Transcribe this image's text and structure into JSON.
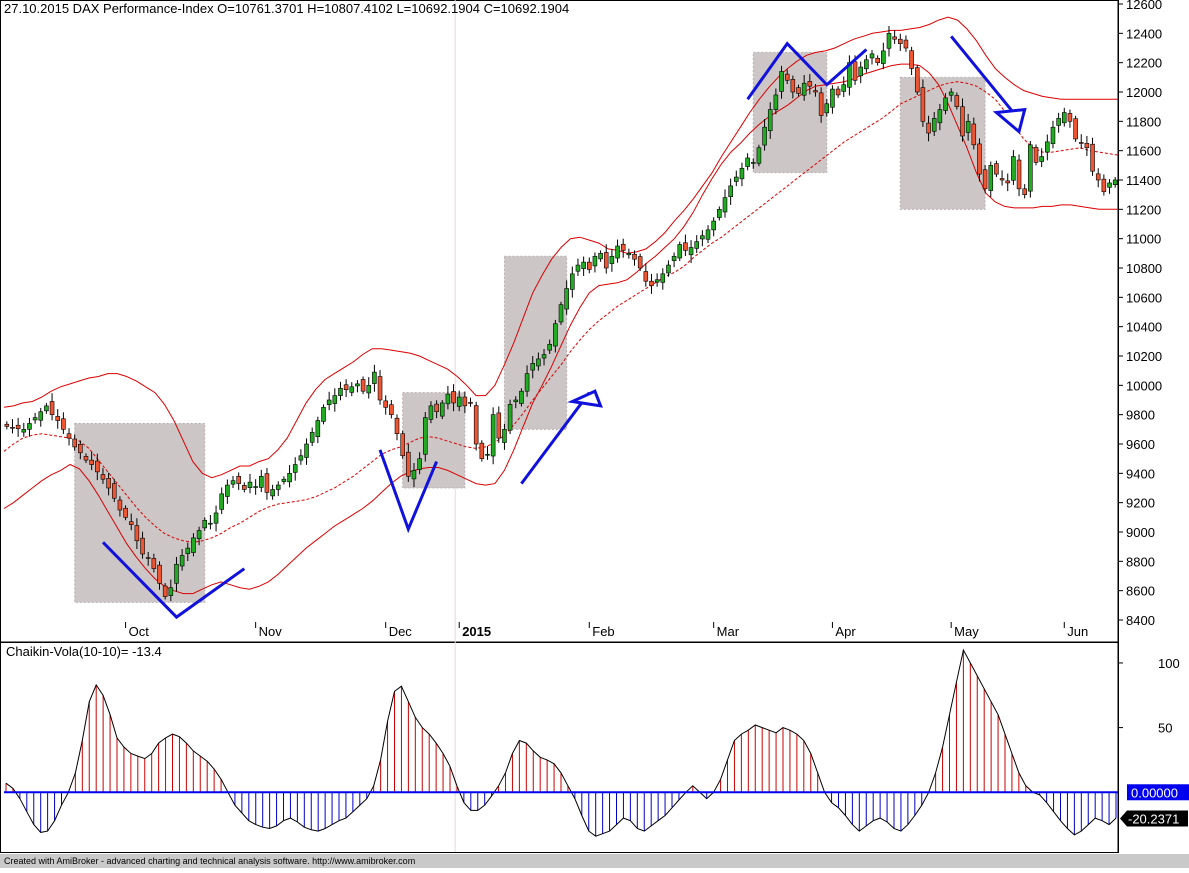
{
  "header": {
    "price_title": "27.10.2015 DAX Performance-Index  O=10761.3701  H=10807.4102  L=10692.1904  C=10692.1904",
    "indicator_title": "Chaikin-Vola(10-10)= -13.4"
  },
  "footer": {
    "text": "Created with AmiBroker - advanced charting and technical analysis software. http://www.amibroker.com"
  },
  "colors": {
    "up": "#22aa22",
    "down": "#ee5533",
    "band": "#dd0000",
    "annotation": "#1111dd",
    "box": "#cdc6c6",
    "positive": "#cc0000",
    "negative": "#0000cc"
  },
  "chart_data": [
    {
      "type": "candlestick",
      "y_axis_ticks": [
        "12600",
        "12400",
        "12200",
        "12000",
        "11800",
        "11600",
        "11400",
        "11200",
        "11000",
        "10800",
        "10600",
        "10400",
        "10200",
        "10000",
        "9800",
        "9600",
        "9400",
        "9200",
        "9000",
        "8800",
        "8600",
        "8400"
      ],
      "ylim": [
        8400,
        12600
      ],
      "x_axis_labels": [
        "Oct",
        "Nov",
        "Dec",
        "2015",
        "Feb",
        "Mar",
        "Apr",
        "May",
        "Jun"
      ],
      "close_values": [
        9720,
        9710,
        9705,
        9700,
        9740,
        9780,
        9820,
        9860,
        9800,
        9760,
        9700,
        9640,
        9580,
        9540,
        9490,
        9460,
        9410,
        9360,
        9300,
        9230,
        9150,
        9100,
        9050,
        8940,
        8850,
        8820,
        8750,
        8650,
        8560,
        8620,
        8780,
        8840,
        8890,
        8960,
        9010,
        9080,
        9060,
        9130,
        9260,
        9320,
        9350,
        9330,
        9290,
        9340,
        9310,
        9380,
        9270,
        9290,
        9320,
        9360,
        9400,
        9460,
        9520,
        9600,
        9680,
        9760,
        9850,
        9900,
        9930,
        9980,
        9970,
        9990,
        10010,
        9960,
        10000,
        10090,
        9900,
        9850,
        9800,
        9670,
        9520,
        9380,
        9420,
        9500,
        9780,
        9860,
        9820,
        9880,
        9940,
        9880,
        9920,
        9860,
        9880,
        9600,
        9500,
        9530,
        9800,
        9640,
        9700,
        9870,
        9900,
        9960,
        10080,
        10150,
        10180,
        10210,
        10280,
        10420,
        10550,
        10660,
        10760,
        10820,
        10840,
        10790,
        10880,
        10900,
        10800,
        10880,
        10950,
        10920,
        10900,
        10860,
        10800,
        10710,
        10680,
        10720,
        10760,
        10820,
        10880,
        10960,
        10920,
        10940,
        10980,
        11020,
        11060,
        11120,
        11200,
        11280,
        11360,
        11420,
        11480,
        11550,
        11520,
        11620,
        11760,
        11880,
        11980,
        12140,
        12080,
        12000,
        11990,
        12060,
        12040,
        12000,
        11840,
        11920,
        12020,
        11980,
        12050,
        12200,
        12080,
        12170,
        12220,
        12260,
        12200,
        12280,
        12400,
        12360,
        12330,
        12300,
        12160,
        12000,
        11800,
        11720,
        11820,
        11880,
        11960,
        12000,
        11900,
        11700,
        11800,
        11640,
        11440,
        11340,
        11500,
        11440,
        11400,
        11380,
        11560,
        11340,
        11300,
        11640,
        11520,
        11560,
        11660,
        11760,
        11820,
        11860,
        11800,
        11680,
        11650,
        11620,
        11460,
        11400,
        11320,
        11380,
        11400
      ],
      "bollinger_mid": [
        9550,
        9600,
        9640,
        9660,
        9670,
        9660,
        9650,
        9640,
        9620,
        9570,
        9490,
        9410,
        9330,
        9250,
        9170,
        9100,
        9040,
        8990,
        8960,
        8940,
        8930,
        8940,
        8960,
        8990,
        9030,
        9060,
        9100,
        9140,
        9170,
        9190,
        9200,
        9210,
        9220,
        9240,
        9270,
        9300,
        9340,
        9380,
        9430,
        9480,
        9530,
        9560,
        9580,
        9610,
        9640,
        9650,
        9640,
        9620,
        9600,
        9580,
        9570,
        9580,
        9610,
        9660,
        9730,
        9810,
        9900,
        9980,
        10060,
        10140,
        10230,
        10310,
        10380,
        10440,
        10490,
        10540,
        10580,
        10620,
        10660,
        10700,
        10740,
        10770,
        10810,
        10870,
        10920,
        10970,
        11010,
        11060,
        11110,
        11160,
        11210,
        11260,
        11310,
        11360,
        11410,
        11460,
        11510,
        11560,
        11610,
        11660,
        11700,
        11740,
        11780,
        11820,
        11870,
        11920,
        11950,
        11980,
        12010,
        12040,
        12060,
        12070,
        12060,
        12040,
        12000,
        11950,
        11870,
        11770,
        11680,
        11620,
        11590,
        11590,
        11600,
        11610,
        11620,
        11600,
        11590,
        11580,
        11570
      ],
      "bollinger_upper": [
        9850,
        9860,
        9880,
        9890,
        9920,
        9960,
        9990,
        10010,
        10030,
        10050,
        10060,
        10080,
        10080,
        10060,
        10030,
        9990,
        9950,
        9870,
        9760,
        9620,
        9480,
        9400,
        9370,
        9390,
        9420,
        9450,
        9450,
        9480,
        9500,
        9560,
        9640,
        9760,
        9880,
        9970,
        10040,
        10080,
        10120,
        10160,
        10210,
        10250,
        10250,
        10240,
        10230,
        10220,
        10200,
        10170,
        10140,
        10110,
        10060,
        10000,
        9930,
        9930,
        10000,
        10140,
        10290,
        10460,
        10630,
        10750,
        10860,
        10940,
        11000,
        11010,
        10990,
        10970,
        10930,
        10920,
        10900,
        10910,
        10930,
        10980,
        11040,
        11120,
        11190,
        11270,
        11360,
        11450,
        11560,
        11660,
        11760,
        11860,
        11950,
        12030,
        12100,
        12160,
        12210,
        12250,
        12270,
        12280,
        12300,
        12330,
        12360,
        12380,
        12400,
        12410,
        12420,
        12420,
        12430,
        12440,
        12460,
        12490,
        12510,
        12490,
        12430,
        12350,
        12250,
        12160,
        12100,
        12050,
        12010,
        11990,
        11970,
        11960,
        11950,
        11950,
        11950,
        11950,
        11950,
        11950,
        11950
      ],
      "bollinger_lower": [
        9160,
        9200,
        9250,
        9300,
        9350,
        9390,
        9420,
        9460,
        9430,
        9350,
        9250,
        9140,
        9030,
        8920,
        8830,
        8750,
        8680,
        8630,
        8600,
        8580,
        8580,
        8610,
        8640,
        8660,
        8640,
        8620,
        8610,
        8630,
        8660,
        8710,
        8770,
        8830,
        8890,
        8940,
        8990,
        9040,
        9080,
        9120,
        9160,
        9210,
        9270,
        9330,
        9380,
        9410,
        9430,
        9440,
        9440,
        9420,
        9390,
        9360,
        9330,
        9320,
        9330,
        9420,
        9560,
        9720,
        9880,
        10000,
        10130,
        10270,
        10410,
        10530,
        10630,
        10680,
        10690,
        10700,
        10720,
        10770,
        10830,
        10880,
        10940,
        11000,
        11080,
        11180,
        11300,
        11410,
        11510,
        11590,
        11650,
        11720,
        11780,
        11830,
        11870,
        11910,
        11960,
        12010,
        12040,
        12050,
        12060,
        12070,
        12090,
        12120,
        12140,
        12160,
        12180,
        12190,
        12190,
        12180,
        12130,
        12050,
        11920,
        11770,
        11620,
        11450,
        11310,
        11250,
        11220,
        11210,
        11210,
        11210,
        11220,
        11220,
        11230,
        11230,
        11220,
        11210,
        11200,
        11200,
        11200
      ]
    },
    {
      "type": "histogram",
      "title": "Chaikin-Vola(10-10)= -13.4",
      "y_axis_ticks": [
        "100",
        "50"
      ],
      "ylim": [
        -40,
        110
      ],
      "zero_label": "0.00000",
      "last_value_label": "-20.2371",
      "values": [
        7,
        3,
        -5,
        -15,
        -25,
        -31,
        -30,
        -22,
        -10,
        0,
        15,
        40,
        70,
        83,
        75,
        60,
        42,
        35,
        30,
        28,
        26,
        30,
        38,
        42,
        45,
        43,
        38,
        32,
        28,
        24,
        18,
        10,
        0,
        -10,
        -16,
        -22,
        -25,
        -27,
        -28,
        -26,
        -22,
        -20,
        -23,
        -27,
        -29,
        -30,
        -28,
        -25,
        -22,
        -20,
        -15,
        -10,
        -5,
        5,
        25,
        55,
        78,
        82,
        70,
        58,
        50,
        45,
        38,
        30,
        20,
        5,
        -8,
        -14,
        -14,
        -10,
        -3,
        5,
        15,
        30,
        40,
        38,
        32,
        27,
        25,
        22,
        15,
        5,
        -5,
        -18,
        -30,
        -34,
        -32,
        -30,
        -25,
        -20,
        -22,
        -28,
        -30,
        -26,
        -22,
        -18,
        -12,
        -6,
        0,
        5,
        0,
        -5,
        0,
        10,
        25,
        40,
        45,
        48,
        52,
        50,
        48,
        46,
        50,
        48,
        45,
        40,
        30,
        15,
        0,
        -8,
        -12,
        -18,
        -25,
        -30,
        -26,
        -22,
        -20,
        -23,
        -28,
        -30,
        -25,
        -18,
        -10,
        0,
        15,
        35,
        60,
        85,
        110,
        100,
        90,
        80,
        70,
        60,
        45,
        30,
        15,
        5,
        0,
        -2,
        -8,
        -15,
        -22,
        -28,
        -33,
        -30,
        -25,
        -20,
        -22,
        -25,
        -20
      ]
    }
  ]
}
